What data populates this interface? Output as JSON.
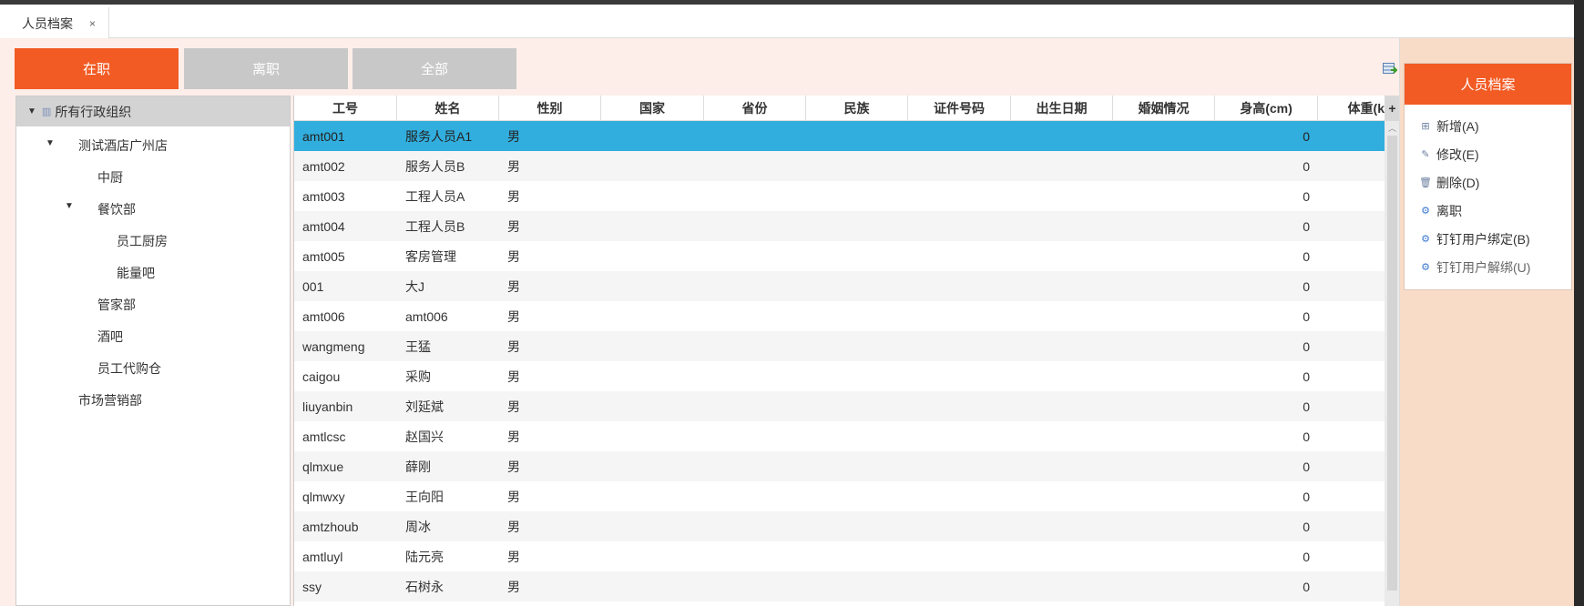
{
  "tab": {
    "label": "人员档案",
    "close": "×"
  },
  "filters": [
    {
      "label": "在职",
      "active": true
    },
    {
      "label": "离职",
      "active": false
    },
    {
      "label": "全部",
      "active": false
    }
  ],
  "tree": {
    "root": "所有行政组织",
    "nodes": [
      {
        "label": "测试酒店广州店",
        "level": 1,
        "expanded": true
      },
      {
        "label": "中厨",
        "level": 2
      },
      {
        "label": "餐饮部",
        "level": 2,
        "expanded": true
      },
      {
        "label": "员工厨房",
        "level": 3
      },
      {
        "label": "能量吧",
        "level": 3
      },
      {
        "label": "管家部",
        "level": 2
      },
      {
        "label": "酒吧",
        "level": 2
      },
      {
        "label": "员工代购仓",
        "level": 2
      },
      {
        "label": "市场营销部",
        "level": 1
      }
    ]
  },
  "grid": {
    "columns": [
      "工号",
      "姓名",
      "性别",
      "国家",
      "省份",
      "民族",
      "证件号码",
      "出生日期",
      "婚姻情况",
      "身高(cm)",
      "体重(k"
    ],
    "add_column": "+",
    "rows": [
      {
        "id": "amt001",
        "name": "服务人员A1",
        "gender": "男",
        "height": "0",
        "selected": true
      },
      {
        "id": "amt002",
        "name": "服务人员B",
        "gender": "男",
        "height": "0"
      },
      {
        "id": "amt003",
        "name": "工程人员A",
        "gender": "男",
        "height": "0"
      },
      {
        "id": "amt004",
        "name": "工程人员B",
        "gender": "男",
        "height": "0"
      },
      {
        "id": "amt005",
        "name": "客房管理",
        "gender": "男",
        "height": "0"
      },
      {
        "id": "001",
        "name": "大J",
        "gender": "男",
        "height": "0"
      },
      {
        "id": "amt006",
        "name": "amt006",
        "gender": "男",
        "height": "0"
      },
      {
        "id": "wangmeng",
        "name": "王猛",
        "gender": "男",
        "height": "0"
      },
      {
        "id": "caigou",
        "name": "采购",
        "gender": "男",
        "height": "0"
      },
      {
        "id": "liuyanbin",
        "name": "刘延斌",
        "gender": "男",
        "height": "0"
      },
      {
        "id": "amtlcsc",
        "name": "赵国兴",
        "gender": "男",
        "height": "0"
      },
      {
        "id": "qlmxue",
        "name": "薛刚",
        "gender": "男",
        "height": "0"
      },
      {
        "id": "qlmwxy",
        "name": "王向阳",
        "gender": "男",
        "height": "0"
      },
      {
        "id": "amtzhoub",
        "name": "周冰",
        "gender": "男",
        "height": "0"
      },
      {
        "id": "amtluyl",
        "name": "陆元亮",
        "gender": "男",
        "height": "0"
      },
      {
        "id": "ssy",
        "name": "石树永",
        "gender": "男",
        "height": "0"
      }
    ]
  },
  "side": {
    "title": "人员档案",
    "actions": [
      {
        "label": "新增(A)",
        "icon": "plus-square-icon"
      },
      {
        "label": "修改(E)",
        "icon": "edit-icon"
      },
      {
        "label": "删除(D)",
        "icon": "trash-icon"
      },
      {
        "label": "离职",
        "icon": "grid-gear-icon"
      },
      {
        "label": "钉钉用户绑定(B)",
        "icon": "grid-gear-icon"
      },
      {
        "label": "钉钉用户解绑(U)",
        "icon": "grid-gear-icon",
        "dim": true
      }
    ]
  },
  "colors": {
    "accent": "#f25b24",
    "selected_row": "#31aedd",
    "inactive_button": "#c8c8c8"
  }
}
